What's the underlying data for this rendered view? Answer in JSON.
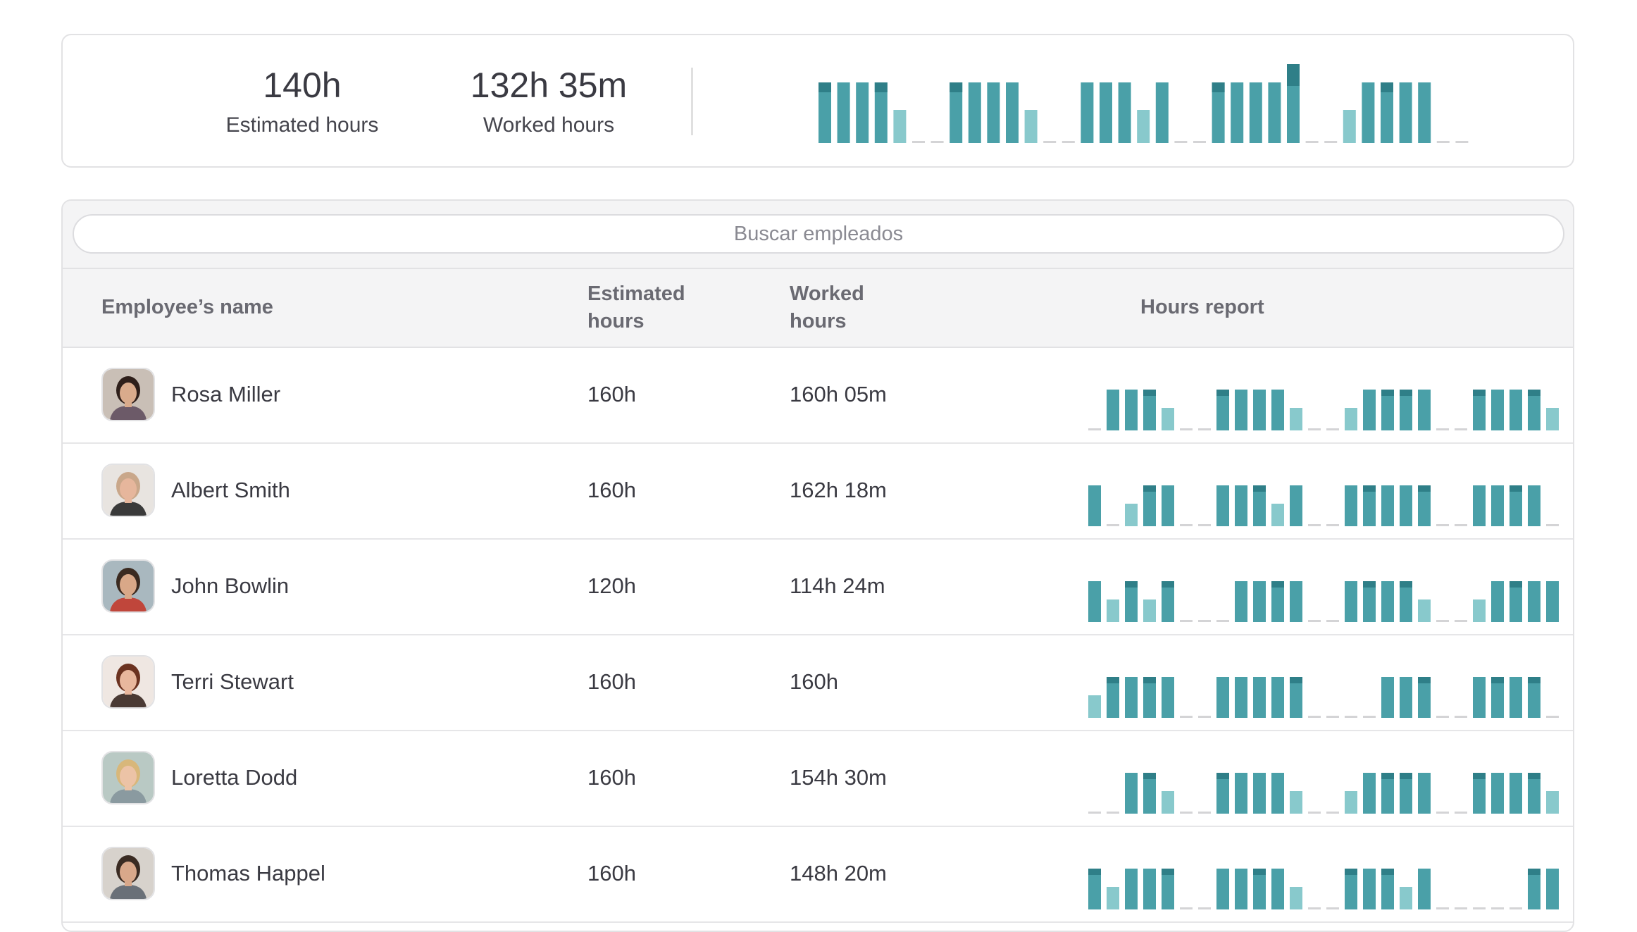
{
  "summary": {
    "estimated_value": "140h",
    "estimated_label": "Estimated hours",
    "worked_value": "132h 35m",
    "worked_label": "Worked hours",
    "chart_days": [
      [
        2,
        1
      ],
      [
        2,
        0
      ],
      [
        2,
        0
      ],
      [
        2,
        1
      ],
      [
        1,
        0
      ],
      [
        0,
        0
      ],
      [
        0,
        0
      ],
      [
        2,
        1
      ],
      [
        2,
        0
      ],
      [
        2,
        0
      ],
      [
        2,
        0
      ],
      [
        1,
        0
      ],
      [
        0,
        0
      ],
      [
        0,
        0
      ],
      [
        2,
        0
      ],
      [
        2,
        0
      ],
      [
        2,
        0
      ],
      [
        1,
        0
      ],
      [
        2,
        0
      ],
      [
        0,
        0
      ],
      [
        0,
        0
      ],
      [
        2,
        1
      ],
      [
        2,
        0
      ],
      [
        2,
        0
      ],
      [
        2,
        0
      ],
      [
        2,
        2
      ],
      [
        0,
        0
      ],
      [
        0,
        0
      ],
      [
        1,
        0
      ],
      [
        2,
        0
      ],
      [
        2,
        1
      ],
      [
        2,
        0
      ],
      [
        2,
        0
      ],
      [
        0,
        0
      ],
      [
        0,
        0
      ]
    ]
  },
  "search": {
    "placeholder": "Buscar empleados"
  },
  "table": {
    "headers": {
      "name": "Employee’s name",
      "estimated": "Estimated hours",
      "worked": "Worked hours",
      "report": "Hours report"
    },
    "rows": [
      {
        "name": "Rosa Miller",
        "estimated": "160h",
        "worked": "160h 05m",
        "avatar": {
          "bg": "#c9bfb6",
          "skin": "#d9ab8c",
          "hair": "#2e1f1a",
          "shirt": "#6c5a68"
        },
        "days": [
          [
            0,
            0
          ],
          [
            2,
            0
          ],
          [
            2,
            0
          ],
          [
            2,
            1
          ],
          [
            1,
            0
          ],
          [
            0,
            0
          ],
          [
            0,
            0
          ],
          [
            2,
            1
          ],
          [
            2,
            0
          ],
          [
            2,
            0
          ],
          [
            2,
            0
          ],
          [
            1,
            0
          ],
          [
            0,
            0
          ],
          [
            0,
            0
          ],
          [
            1,
            0
          ],
          [
            2,
            0
          ],
          [
            2,
            1
          ],
          [
            2,
            1
          ],
          [
            2,
            0
          ],
          [
            0,
            0
          ],
          [
            0,
            0
          ],
          [
            2,
            1
          ],
          [
            2,
            0
          ],
          [
            2,
            0
          ],
          [
            2,
            1
          ],
          [
            1,
            0
          ]
        ]
      },
      {
        "name": "Albert Smith",
        "estimated": "160h",
        "worked": "162h 18m",
        "avatar": {
          "bg": "#e8e4e0",
          "skin": "#e6b69c",
          "hair": "#c9a78a",
          "shirt": "#3a3a3a"
        },
        "days": [
          [
            2,
            0
          ],
          [
            0,
            0
          ],
          [
            1,
            0
          ],
          [
            2,
            1
          ],
          [
            2,
            0
          ],
          [
            0,
            0
          ],
          [
            0,
            0
          ],
          [
            2,
            0
          ],
          [
            2,
            0
          ],
          [
            2,
            1
          ],
          [
            1,
            0
          ],
          [
            2,
            0
          ],
          [
            0,
            0
          ],
          [
            0,
            0
          ],
          [
            2,
            0
          ],
          [
            2,
            1
          ],
          [
            2,
            0
          ],
          [
            2,
            0
          ],
          [
            2,
            1
          ],
          [
            0,
            0
          ],
          [
            0,
            0
          ],
          [
            2,
            0
          ],
          [
            2,
            0
          ],
          [
            2,
            1
          ],
          [
            2,
            0
          ],
          [
            0,
            0
          ]
        ]
      },
      {
        "name": "John Bowlin",
        "estimated": "120h",
        "worked": "114h 24m",
        "avatar": {
          "bg": "#a9b8bf",
          "skin": "#d9a888",
          "hair": "#3b2a20",
          "shirt": "#c0463b"
        },
        "days": [
          [
            2,
            0
          ],
          [
            1,
            0
          ],
          [
            2,
            1
          ],
          [
            1,
            0
          ],
          [
            2,
            1
          ],
          [
            0,
            0
          ],
          [
            0,
            0
          ],
          [
            0,
            0
          ],
          [
            2,
            0
          ],
          [
            2,
            0
          ],
          [
            2,
            1
          ],
          [
            2,
            0
          ],
          [
            0,
            0
          ],
          [
            0,
            0
          ],
          [
            2,
            0
          ],
          [
            2,
            1
          ],
          [
            2,
            0
          ],
          [
            2,
            1
          ],
          [
            1,
            0
          ],
          [
            0,
            0
          ],
          [
            0,
            0
          ],
          [
            1,
            0
          ],
          [
            2,
            0
          ],
          [
            2,
            1
          ],
          [
            2,
            0
          ],
          [
            2,
            0
          ]
        ]
      },
      {
        "name": "Terri Stewart",
        "estimated": "160h",
        "worked": "160h",
        "avatar": {
          "bg": "#efe7e2",
          "skin": "#e8b79d",
          "hair": "#6b3220",
          "shirt": "#4a3a34"
        },
        "days": [
          [
            1,
            0
          ],
          [
            2,
            1
          ],
          [
            2,
            0
          ],
          [
            2,
            1
          ],
          [
            2,
            0
          ],
          [
            0,
            0
          ],
          [
            0,
            0
          ],
          [
            2,
            0
          ],
          [
            2,
            0
          ],
          [
            2,
            0
          ],
          [
            2,
            0
          ],
          [
            2,
            1
          ],
          [
            0,
            0
          ],
          [
            0,
            0
          ],
          [
            0,
            0
          ],
          [
            0,
            0
          ],
          [
            2,
            0
          ],
          [
            2,
            0
          ],
          [
            2,
            1
          ],
          [
            0,
            0
          ],
          [
            0,
            0
          ],
          [
            2,
            0
          ],
          [
            2,
            1
          ],
          [
            2,
            0
          ],
          [
            2,
            1
          ],
          [
            0,
            0
          ]
        ]
      },
      {
        "name": "Loretta Dodd",
        "estimated": "160h",
        "worked": "154h 30m",
        "avatar": {
          "bg": "#b9c9c4",
          "skin": "#ecc3a6",
          "hair": "#d8b77a",
          "shirt": "#8a9aa0"
        },
        "days": [
          [
            0,
            0
          ],
          [
            0,
            0
          ],
          [
            2,
            0
          ],
          [
            2,
            1
          ],
          [
            1,
            0
          ],
          [
            0,
            0
          ],
          [
            0,
            0
          ],
          [
            2,
            1
          ],
          [
            2,
            0
          ],
          [
            2,
            0
          ],
          [
            2,
            0
          ],
          [
            1,
            0
          ],
          [
            0,
            0
          ],
          [
            0,
            0
          ],
          [
            1,
            0
          ],
          [
            2,
            0
          ],
          [
            2,
            1
          ],
          [
            2,
            1
          ],
          [
            2,
            0
          ],
          [
            0,
            0
          ],
          [
            0,
            0
          ],
          [
            2,
            1
          ],
          [
            2,
            0
          ],
          [
            2,
            0
          ],
          [
            2,
            1
          ],
          [
            1,
            0
          ]
        ]
      },
      {
        "name": "Thomas Happel",
        "estimated": "160h",
        "worked": "148h 20m",
        "avatar": {
          "bg": "#d7d2cc",
          "skin": "#d9a88a",
          "hair": "#3a2b22",
          "shirt": "#6a7078"
        },
        "days": [
          [
            2,
            1
          ],
          [
            1,
            0
          ],
          [
            2,
            0
          ],
          [
            2,
            0
          ],
          [
            2,
            1
          ],
          [
            0,
            0
          ],
          [
            0,
            0
          ],
          [
            2,
            0
          ],
          [
            2,
            0
          ],
          [
            2,
            1
          ],
          [
            2,
            0
          ],
          [
            1,
            0
          ],
          [
            0,
            0
          ],
          [
            0,
            0
          ],
          [
            2,
            1
          ],
          [
            2,
            0
          ],
          [
            2,
            1
          ],
          [
            1,
            0
          ],
          [
            2,
            0
          ],
          [
            0,
            0
          ],
          [
            0,
            0
          ],
          [
            0,
            0
          ],
          [
            0,
            0
          ],
          [
            0,
            0
          ],
          [
            2,
            1
          ],
          [
            2,
            0
          ]
        ]
      }
    ]
  },
  "colors": {
    "bar_full": "#4aa0a8",
    "bar_light": "#88c9cc",
    "bar_cap": "#2f7f88",
    "bar_empty": "#d4d4d6"
  },
  "icons": {
    "avatar": "person-photo-icon"
  }
}
